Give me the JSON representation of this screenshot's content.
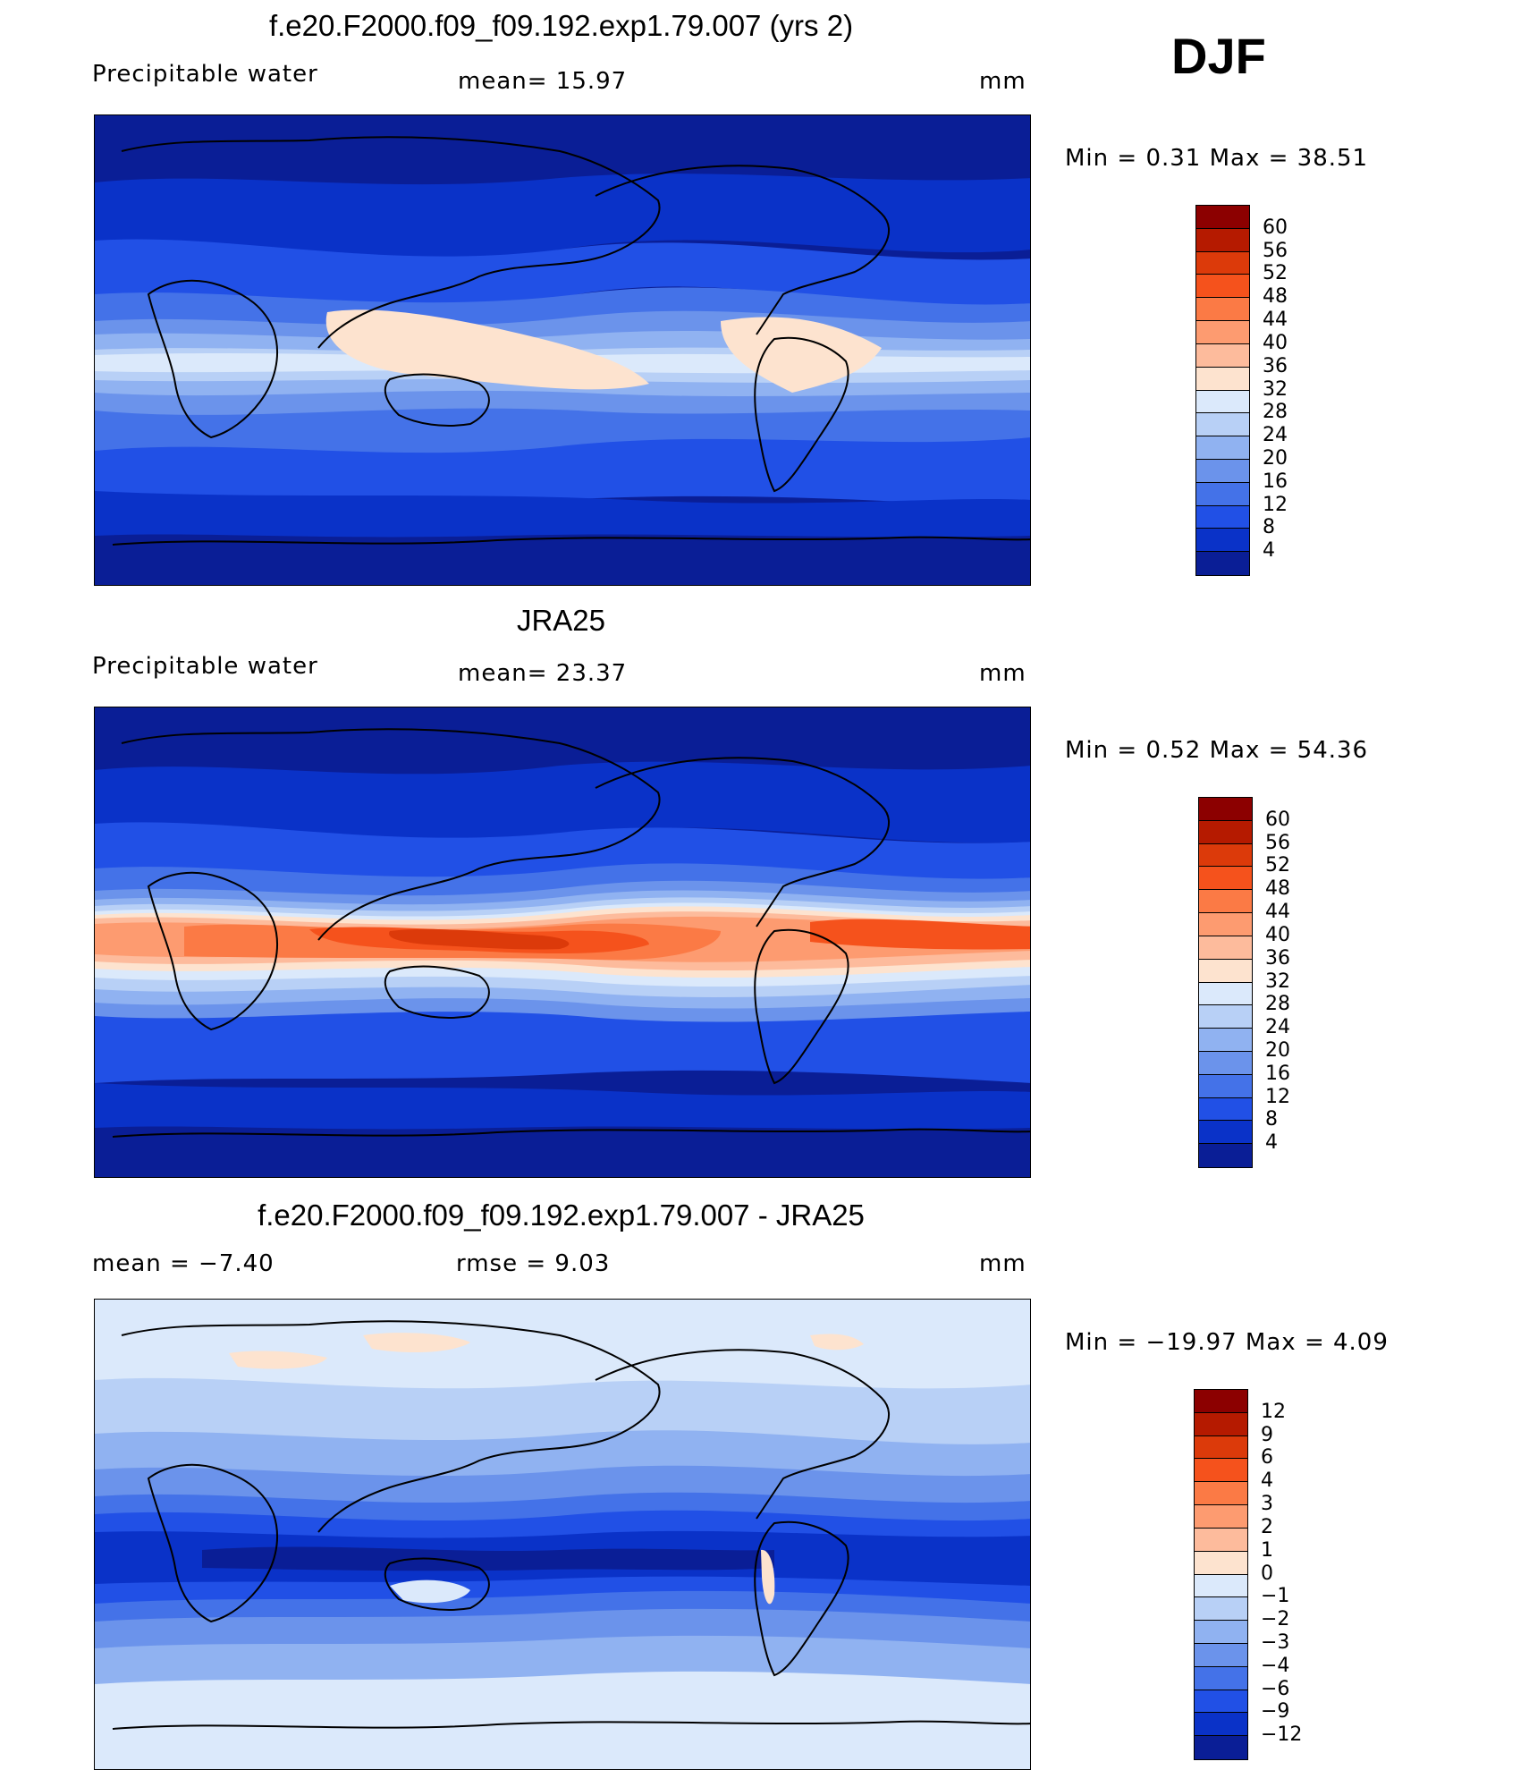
{
  "season": "DJF",
  "panels": [
    {
      "title": "f.e20.F2000.f09_f09.192.exp1.79.007 (yrs 2)",
      "left_label": "Precipitable  water",
      "center_label": "mean=   15.97",
      "units": "mm",
      "minmax": "Min  =     0.31  Max  =    38.51",
      "colorbar_labels": [
        "60",
        "56",
        "52",
        "48",
        "44",
        "40",
        "36",
        "32",
        "28",
        "24",
        "20",
        "16",
        "12",
        "8",
        "4"
      ],
      "colors": [
        "#8c0000",
        "#b51a00",
        "#dc3a0a",
        "#f5521c",
        "#fb7a45",
        "#fd9b70",
        "#fdbb9c",
        "#fde3cf",
        "#dbe9fb",
        "#b8d0f6",
        "#90b2f1",
        "#6b93eb",
        "#4472e8",
        "#2150e6",
        "#0a32c8",
        "#0a1e96"
      ]
    },
    {
      "title": "JRA25",
      "left_label": "Precipitable  water",
      "center_label": "mean=   23.37",
      "units": "mm",
      "minmax": "Min  =     0.52  Max  =    54.36",
      "colorbar_labels": [
        "60",
        "56",
        "52",
        "48",
        "44",
        "40",
        "36",
        "32",
        "28",
        "24",
        "20",
        "16",
        "12",
        "8",
        "4"
      ],
      "colors": [
        "#8c0000",
        "#b51a00",
        "#dc3a0a",
        "#f5521c",
        "#fb7a45",
        "#fd9b70",
        "#fdbb9c",
        "#fde3cf",
        "#dbe9fb",
        "#b8d0f6",
        "#90b2f1",
        "#6b93eb",
        "#4472e8",
        "#2150e6",
        "#0a32c8",
        "#0a1e96"
      ]
    },
    {
      "title": "f.e20.F2000.f09_f09.192.exp1.79.007 - JRA25",
      "left_label": "mean  =    −7.40",
      "center_label": "rmse  =     9.03",
      "units": "mm",
      "minmax": "Min  = −19.97  Max  =     4.09",
      "colorbar_labels": [
        "12",
        "9",
        "6",
        "4",
        "3",
        "2",
        "1",
        "0",
        "−1",
        "−2",
        "−3",
        "−4",
        "−6",
        "−9",
        "−12"
      ],
      "colors": [
        "#8c0000",
        "#b51a00",
        "#dc3a0a",
        "#f5521c",
        "#fb7a45",
        "#fd9b70",
        "#fdbb9c",
        "#fde3cf",
        "#dbe9fb",
        "#b8d0f6",
        "#90b2f1",
        "#6b93eb",
        "#4472e8",
        "#2150e6",
        "#0a32c8",
        "#0a1e96"
      ]
    }
  ]
}
